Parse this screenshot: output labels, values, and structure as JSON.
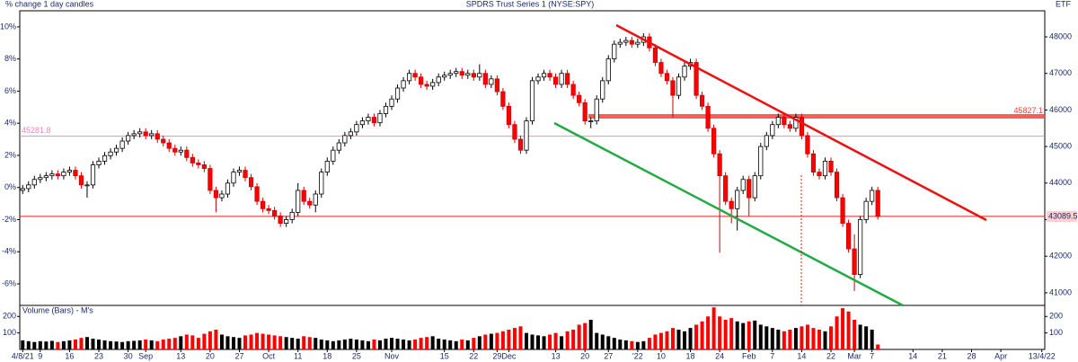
{
  "chart_data": {
    "type": "candlestick",
    "title": "SPDRS Trust Series 1 (NYSE:SPY)",
    "subtitle": "% change 1 day candles",
    "corner_label": "ETF",
    "axis": "y2",
    "up_color": "#ffffff",
    "down_color": "#ff0000",
    "ylim": [
      -7.34,
      11.0
    ],
    "yticks": [
      {
        "value": 10,
        "label": "10%"
      },
      {
        "value": 8,
        "label": "8%"
      },
      {
        "value": 6,
        "label": "6%"
      },
      {
        "value": 4,
        "label": "4%"
      },
      {
        "value": 2,
        "label": "2%"
      },
      {
        "value": 0,
        "label": "0%"
      },
      {
        "value": -2,
        "label": "-2%"
      },
      {
        "value": -4,
        "label": "-4%"
      },
      {
        "value": -6,
        "label": "-6%"
      }
    ],
    "y2lim": [
      40654,
      48713
    ],
    "y2ticks": [
      48000,
      47000,
      46000,
      45000,
      44000,
      43000,
      42000,
      41000
    ],
    "reference_lines": [
      {
        "value": 45281.8,
        "color": "#ff80c0"
      },
      {
        "value": 45827.1,
        "color": "#ff4040"
      },
      {
        "value": 43089.5,
        "color": "#e02020"
      }
    ],
    "categories": [
      "4/8/21",
      null,
      null,
      "9",
      null,
      null,
      null,
      null,
      "16",
      null,
      null,
      null,
      null,
      "23",
      null,
      null,
      null,
      null,
      "30",
      null,
      null,
      "Sep",
      null,
      null,
      null,
      null,
      null,
      "13",
      null,
      null,
      null,
      null,
      "20",
      null,
      null,
      null,
      null,
      "27",
      null,
      null,
      null,
      null,
      "Oct",
      null,
      null,
      null,
      null,
      "11",
      null,
      null,
      null,
      null,
      "18",
      null,
      null,
      null,
      null,
      "25",
      null,
      null,
      null,
      null,
      null,
      "Nov",
      null,
      null,
      null,
      null,
      null,
      null,
      null,
      null,
      "15",
      null,
      null,
      null,
      null,
      "22",
      null,
      null,
      null,
      "29",
      null,
      "Dec",
      null,
      null,
      null,
      null,
      null,
      null,
      null,
      "13",
      null,
      null,
      null,
      null,
      "20",
      null,
      null,
      null,
      "27",
      null,
      null,
      null,
      null,
      "'22",
      null,
      null,
      null,
      "10",
      null,
      null,
      null,
      null,
      "18",
      null,
      null,
      null,
      null,
      "24",
      null,
      null,
      null,
      null,
      "Feb",
      null,
      null,
      null,
      "7",
      null,
      null,
      null,
      null,
      "14",
      null,
      null,
      null,
      null,
      "22",
      null,
      null,
      null,
      "Mar",
      null,
      null,
      "7",
      null,
      null,
      null,
      null,
      null,
      null,
      "14",
      null,
      null,
      null,
      null,
      "21",
      null,
      null,
      null,
      null,
      "28",
      null,
      null,
      null,
      null,
      "Apr",
      null,
      null,
      null,
      null,
      null,
      null,
      "13/4/22"
    ],
    "open": [
      43800,
      43850,
      43950,
      44100,
      44150,
      44200,
      44250,
      44200,
      44300,
      44350,
      44200,
      43950,
      43950,
      44500,
      44600,
      44750,
      44850,
      44950,
      45150,
      45300,
      45350,
      45400,
      45300,
      45350,
      45200,
      45100,
      44950,
      44850,
      44900,
      44700,
      44550,
      44500,
      44400,
      43800,
      43600,
      43700,
      44000,
      44300,
      44350,
      44150,
      43900,
      43500,
      43300,
      43250,
      43100,
      42900,
      43000,
      43200,
      43800,
      43500,
      43400,
      43700,
      44300,
      44600,
      44900,
      45100,
      45300,
      45400,
      45600,
      45700,
      45800,
      45650,
      45900,
      46100,
      46300,
      46600,
      46800,
      47000,
      46900,
      46700,
      46650,
      46750,
      46900,
      46950,
      47000,
      47050,
      46950,
      47000,
      46900,
      47000,
      46700,
      46850,
      46500,
      46100,
      45600,
      45200,
      44900,
      45700,
      46800,
      46900,
      47000,
      46900,
      46700,
      47000,
      46700,
      46400,
      46200,
      45700,
      45700,
      46300,
      46800,
      47400,
      47800,
      47850,
      47900,
      47800,
      47850,
      48000,
      47700,
      47300,
      47000,
      46800,
      46400,
      46900,
      47200,
      47300,
      46400,
      46100,
      45500,
      44800,
      44200,
      43500,
      43300,
      43800,
      44100,
      43600,
      44200,
      45000,
      45300,
      45600,
      45800,
      45600,
      45500,
      45800,
      45300,
      44800,
      44300,
      44200,
      44600,
      44300,
      43600,
      42900,
      42200,
      41500,
      43000,
      43500,
      43800,
      null,
      null,
      null,
      null,
      null,
      null,
      null,
      null,
      null,
      null,
      null,
      null,
      null,
      null,
      null,
      null,
      null,
      null,
      null,
      null,
      null,
      null,
      null,
      null,
      null,
      null,
      null,
      null
    ],
    "high": [
      43950,
      44050,
      44200,
      44250,
      44300,
      44350,
      44350,
      44400,
      44450,
      44450,
      44300,
      44050,
      44600,
      44700,
      44850,
      44950,
      45050,
      45250,
      45400,
      45450,
      45500,
      45500,
      45450,
      45450,
      45300,
      45200,
      45050,
      45000,
      45000,
      44800,
      44650,
      44600,
      44500,
      43900,
      43800,
      44100,
      44400,
      44450,
      44450,
      44250,
      44000,
      43600,
      43400,
      43350,
      43200,
      43100,
      43300,
      44000,
      43900,
      43600,
      43800,
      44400,
      44700,
      45000,
      45200,
      45400,
      45500,
      45700,
      45800,
      45900,
      45900,
      46000,
      46200,
      46400,
      46700,
      46900,
      47100,
      47100,
      47000,
      46800,
      46850,
      47000,
      47050,
      47100,
      47150,
      47150,
      47100,
      47100,
      47250,
      47100,
      46950,
      46950,
      46600,
      46200,
      45700,
      45300,
      45800,
      46900,
      47000,
      47100,
      47100,
      47000,
      47100,
      47100,
      46800,
      46500,
      46300,
      45800,
      46400,
      46900,
      47500,
      47900,
      47950,
      48000,
      48000,
      47950,
      48100,
      48100,
      47800,
      47400,
      47100,
      46900,
      47000,
      47300,
      47400,
      47400,
      46500,
      46200,
      45600,
      44900,
      44300,
      43600,
      43900,
      44200,
      44200,
      44300,
      45100,
      45400,
      45700,
      45900,
      45900,
      45700,
      45900,
      45900,
      45400,
      44900,
      44400,
      44700,
      44700,
      44400,
      43700,
      43000,
      42600,
      43100,
      43600,
      43900,
      43900,
      null,
      null,
      null,
      null,
      null,
      null,
      null,
      null,
      null,
      null,
      null,
      null,
      null,
      null,
      null,
      null,
      null,
      null,
      null,
      null,
      null,
      null,
      null,
      null,
      null,
      null,
      null,
      null
    ],
    "low": [
      43700,
      43750,
      43850,
      44000,
      44050,
      44100,
      44100,
      44100,
      44200,
      44100,
      43850,
      43600,
      43850,
      44400,
      44500,
      44650,
      44750,
      44850,
      45050,
      45200,
      45250,
      45200,
      45200,
      45100,
      45000,
      44850,
      44750,
      44750,
      44600,
      44450,
      44400,
      44300,
      43700,
      43200,
      43500,
      43600,
      43900,
      44200,
      44050,
      43800,
      43400,
      43200,
      43150,
      43000,
      42800,
      42800,
      42900,
      43100,
      43400,
      43300,
      43200,
      43600,
      44200,
      44500,
      44800,
      45000,
      45200,
      45300,
      45500,
      45600,
      45550,
      45550,
      45800,
      46000,
      46200,
      46500,
      46700,
      46800,
      46600,
      46550,
      46550,
      46650,
      46800,
      46850,
      46900,
      46850,
      46850,
      46800,
      46800,
      46600,
      46600,
      46400,
      46000,
      45500,
      45100,
      44800,
      44800,
      45600,
      46700,
      46800,
      46800,
      46600,
      46600,
      46600,
      46300,
      46100,
      45600,
      45500,
      45600,
      46200,
      46700,
      47300,
      47700,
      47750,
      47700,
      47700,
      47750,
      47600,
      47200,
      46900,
      46700,
      45800,
      46300,
      46800,
      47100,
      46300,
      46000,
      45400,
      44700,
      42100,
      43400,
      42900,
      42700,
      43700,
      43100,
      43500,
      44100,
      44900,
      45200,
      45500,
      45500,
      45400,
      45400,
      45200,
      44700,
      44200,
      44100,
      44100,
      44200,
      43500,
      42800,
      42100,
      41050,
      41400,
      42900,
      43400,
      43000,
      null,
      null,
      null,
      null,
      null,
      null,
      null,
      null,
      null,
      null,
      null,
      null,
      null,
      null,
      null,
      null,
      null,
      null,
      null,
      null,
      null,
      null,
      null,
      null,
      null,
      null,
      null,
      null
    ],
    "close": [
      43850,
      43950,
      44100,
      44150,
      44200,
      44250,
      44200,
      44300,
      44350,
      44200,
      43950,
      43950,
      44500,
      44600,
      44750,
      44850,
      44950,
      45150,
      45300,
      45350,
      45400,
      45300,
      45350,
      45200,
      45100,
      44950,
      44850,
      44900,
      44700,
      44550,
      44500,
      44400,
      43800,
      43600,
      43700,
      44000,
      44300,
      44350,
      44150,
      43900,
      43500,
      43300,
      43250,
      43100,
      42900,
      43000,
      43200,
      43800,
      43500,
      43400,
      43700,
      44300,
      44600,
      44900,
      45100,
      45300,
      45400,
      45600,
      45700,
      45800,
      45650,
      45900,
      46100,
      46300,
      46600,
      46800,
      47000,
      46900,
      46700,
      46650,
      46750,
      46900,
      46950,
      47000,
      47050,
      46950,
      47000,
      46900,
      47000,
      46700,
      46850,
      46500,
      46100,
      45600,
      45200,
      44900,
      45700,
      46800,
      46900,
      47000,
      46900,
      46700,
      47000,
      46700,
      46400,
      46200,
      45700,
      45700,
      46300,
      46800,
      47400,
      47800,
      47850,
      47900,
      47800,
      47850,
      48000,
      47700,
      47300,
      47000,
      46800,
      46400,
      46900,
      47200,
      47300,
      46400,
      46100,
      45500,
      44800,
      44200,
      43500,
      43300,
      43800,
      44100,
      43600,
      44200,
      45000,
      45300,
      45600,
      45800,
      45600,
      45500,
      45800,
      45300,
      44800,
      44300,
      44200,
      44600,
      44300,
      43600,
      42900,
      42200,
      41500,
      43000,
      43500,
      43800,
      43089.5,
      null,
      null,
      null,
      null,
      null,
      null,
      null,
      null,
      null,
      null,
      null,
      null,
      null,
      null,
      null,
      null,
      null,
      null,
      null,
      null,
      null,
      null,
      null,
      null,
      null,
      null,
      null,
      null
    ],
    "volume": {
      "type": "bar",
      "label": "Volume (Bars) - M's",
      "up_color": "#000000",
      "down_color": "#ff0000",
      "ylim": [
        0,
        267
      ],
      "yticks": [
        200,
        100
      ],
      "values": [
        55,
        50,
        45,
        50,
        48,
        52,
        45,
        50,
        55,
        60,
        70,
        75,
        65,
        60,
        55,
        50,
        48,
        45,
        50,
        52,
        55,
        60,
        55,
        50,
        60,
        65,
        70,
        80,
        90,
        85,
        70,
        95,
        110,
        120,
        90,
        80,
        75,
        70,
        85,
        90,
        100,
        95,
        90,
        85,
        80,
        75,
        70,
        65,
        80,
        75,
        70,
        60,
        55,
        50,
        55,
        60,
        65,
        60,
        55,
        50,
        60,
        55,
        65,
        70,
        65,
        60,
        55,
        60,
        70,
        75,
        80,
        65,
        60,
        55,
        50,
        60,
        55,
        70,
        80,
        90,
        95,
        100,
        110,
        120,
        130,
        140,
        100,
        90,
        85,
        80,
        90,
        100,
        80,
        110,
        120,
        150,
        160,
        180,
        100,
        90,
        80,
        70,
        60,
        55,
        50,
        45,
        50,
        70,
        90,
        100,
        110,
        130,
        120,
        110,
        130,
        150,
        170,
        200,
        255,
        200,
        180,
        190,
        170,
        160,
        170,
        175,
        150,
        140,
        130,
        120,
        110,
        120,
        130,
        140,
        150,
        130,
        120,
        110,
        140,
        200,
        250,
        230,
        180,
        150,
        140,
        120,
        30,
        null,
        null,
        null,
        null,
        null,
        null,
        null,
        null,
        null,
        null,
        null,
        null,
        null,
        null,
        null,
        null,
        null,
        null,
        null,
        null,
        null,
        null,
        null,
        null,
        null,
        null,
        null,
        null
      ]
    }
  }
}
